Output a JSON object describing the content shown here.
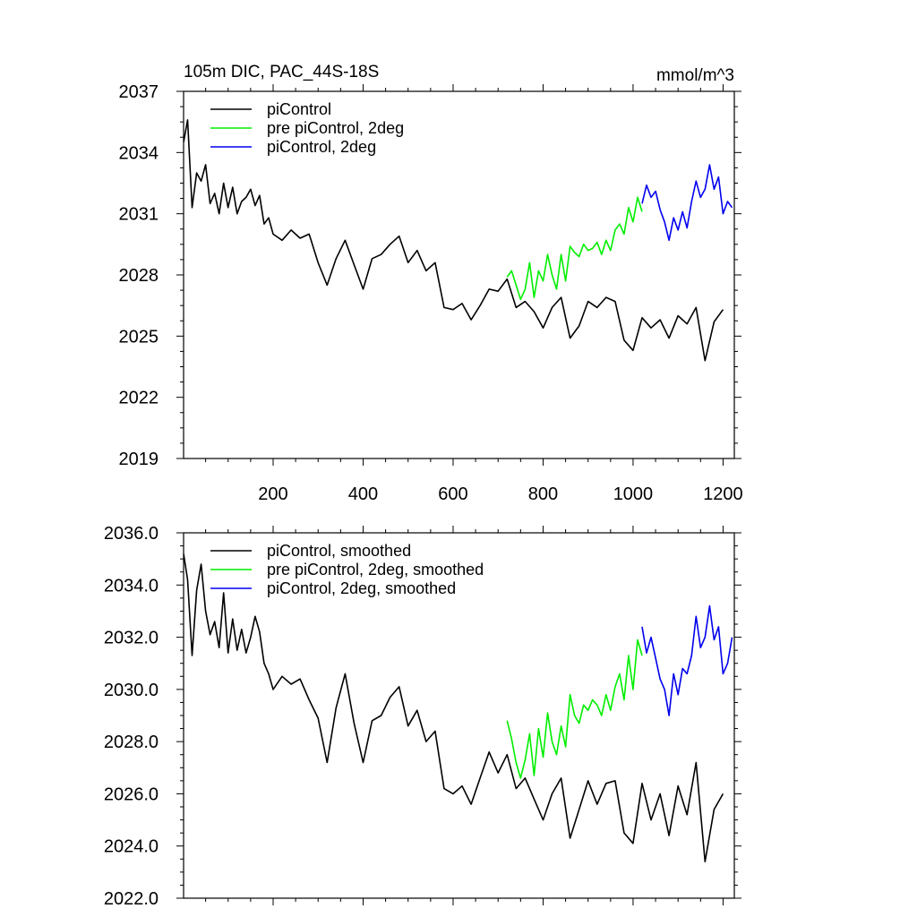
{
  "chart_data": [
    {
      "type": "line",
      "title": "105m DIC, PAC_44S-18S",
      "units": "mmol/m^3",
      "xlabel": "",
      "ylabel": "",
      "xlim": [
        1,
        1225
      ],
      "ylim": [
        2019,
        2037
      ],
      "xticks": [
        200,
        400,
        600,
        800,
        1000,
        1200
      ],
      "xtick_labels": [
        "200",
        "400",
        "600",
        "800",
        "1000",
        "1200"
      ],
      "yticks": [
        2019,
        2022,
        2025,
        2028,
        2031,
        2034,
        2037
      ],
      "ytick_labels": [
        "2019",
        "2022",
        "2025",
        "2028",
        "2031",
        "2034",
        "2037"
      ],
      "legend_position": "top-left",
      "series": [
        {
          "name": "piControl",
          "color": "#000000",
          "x": [
            1,
            10,
            20,
            30,
            40,
            50,
            60,
            70,
            80,
            90,
            100,
            110,
            120,
            130,
            140,
            150,
            160,
            170,
            180,
            190,
            200,
            220,
            240,
            260,
            280,
            300,
            320,
            340,
            360,
            380,
            400,
            420,
            440,
            460,
            480,
            500,
            520,
            540,
            560,
            580,
            600,
            620,
            640,
            660,
            680,
            700,
            720,
            740,
            760,
            780,
            800,
            820,
            840,
            860,
            880,
            900,
            920,
            940,
            960,
            980,
            1000,
            1020,
            1040,
            1060,
            1080,
            1100,
            1120,
            1140,
            1160,
            1180,
            1200
          ],
          "values": [
            2034.5,
            2035.6,
            2031.3,
            2033.0,
            2032.6,
            2033.4,
            2031.5,
            2032.0,
            2031.0,
            2032.5,
            2031.3,
            2032.3,
            2031.0,
            2031.6,
            2031.8,
            2032.2,
            2031.4,
            2031.9,
            2030.5,
            2030.8,
            2030.0,
            2029.7,
            2030.2,
            2029.8,
            2030.0,
            2028.6,
            2027.5,
            2028.8,
            2029.7,
            2028.5,
            2027.3,
            2028.8,
            2029.0,
            2029.5,
            2029.9,
            2028.6,
            2029.2,
            2028.2,
            2028.6,
            2026.4,
            2026.3,
            2026.6,
            2025.8,
            2026.5,
            2027.3,
            2027.2,
            2027.8,
            2026.4,
            2026.7,
            2026.2,
            2025.4,
            2026.4,
            2026.9,
            2024.9,
            2025.5,
            2026.7,
            2026.4,
            2026.9,
            2026.7,
            2024.8,
            2024.3,
            2025.9,
            2025.4,
            2025.8,
            2024.9,
            2026.0,
            2025.6,
            2026.4,
            2023.8,
            2025.7,
            2026.3
          ]
        },
        {
          "name": "pre piControl, 2deg",
          "color": "#00ee00",
          "x": [
            720,
            730,
            740,
            750,
            760,
            770,
            780,
            790,
            800,
            810,
            820,
            830,
            840,
            850,
            860,
            870,
            880,
            890,
            900,
            910,
            920,
            930,
            940,
            950,
            960,
            970,
            980,
            990,
            1000,
            1010,
            1020
          ],
          "values": [
            2027.9,
            2028.2,
            2027.5,
            2026.8,
            2027.3,
            2028.6,
            2026.9,
            2028.2,
            2027.7,
            2029.0,
            2028.0,
            2027.3,
            2029.0,
            2027.7,
            2029.4,
            2029.1,
            2028.9,
            2029.5,
            2029.2,
            2029.3,
            2029.6,
            2029.0,
            2029.7,
            2029.2,
            2030.2,
            2030.5,
            2030.0,
            2031.3,
            2030.6,
            2031.8,
            2031.1
          ]
        },
        {
          "name": "piControl, 2deg",
          "color": "#0000ee",
          "x": [
            1020,
            1030,
            1040,
            1050,
            1060,
            1070,
            1080,
            1090,
            1100,
            1110,
            1120,
            1130,
            1140,
            1150,
            1160,
            1170,
            1180,
            1190,
            1200,
            1210,
            1220
          ],
          "values": [
            2031.5,
            2032.4,
            2031.8,
            2032.1,
            2031.2,
            2030.6,
            2029.7,
            2030.8,
            2030.2,
            2031.1,
            2030.3,
            2031.6,
            2032.6,
            2031.8,
            2032.2,
            2033.4,
            2032.2,
            2032.8,
            2031.0,
            2031.6,
            2031.3
          ]
        }
      ]
    },
    {
      "type": "line",
      "title": "",
      "xlabel": "",
      "ylabel": "",
      "xlim": [
        1,
        1225
      ],
      "ylim": [
        2022.0,
        2036.0
      ],
      "xticks": [
        200,
        400,
        600,
        800,
        1000,
        1200
      ],
      "xtick_labels": [],
      "yticks": [
        2022.0,
        2024.0,
        2026.0,
        2028.0,
        2030.0,
        2032.0,
        2034.0,
        2036.0
      ],
      "ytick_labels": [
        "2022.0",
        "2024.0",
        "2026.0",
        "2028.0",
        "2030.0",
        "2032.0",
        "2034.0",
        "2036.0"
      ],
      "legend_position": "top-left",
      "series": [
        {
          "name": "piControl, smoothed",
          "color": "#000000",
          "x": [
            1,
            10,
            20,
            30,
            40,
            50,
            60,
            70,
            80,
            90,
            100,
            110,
            120,
            130,
            140,
            150,
            160,
            170,
            180,
            190,
            200,
            220,
            240,
            260,
            280,
            300,
            320,
            340,
            360,
            380,
            400,
            420,
            440,
            460,
            480,
            500,
            520,
            540,
            560,
            580,
            600,
            620,
            640,
            660,
            680,
            700,
            720,
            740,
            760,
            780,
            800,
            820,
            840,
            860,
            880,
            900,
            920,
            940,
            960,
            980,
            1000,
            1020,
            1040,
            1060,
            1080,
            1100,
            1120,
            1140,
            1160,
            1180,
            1200
          ],
          "values": [
            2035.2,
            2034.2,
            2031.3,
            2033.8,
            2034.8,
            2033.0,
            2032.1,
            2032.6,
            2031.6,
            2033.7,
            2031.4,
            2032.7,
            2031.5,
            2032.3,
            2031.4,
            2032.0,
            2032.8,
            2032.2,
            2031.0,
            2030.6,
            2030.0,
            2030.5,
            2030.2,
            2030.4,
            2029.6,
            2028.9,
            2027.2,
            2029.3,
            2030.6,
            2028.7,
            2027.2,
            2028.8,
            2029.0,
            2029.7,
            2030.1,
            2028.6,
            2029.2,
            2028.0,
            2028.4,
            2026.2,
            2026.0,
            2026.3,
            2025.6,
            2026.6,
            2027.6,
            2026.8,
            2027.5,
            2026.2,
            2026.6,
            2025.8,
            2025.0,
            2026.0,
            2026.6,
            2024.3,
            2025.4,
            2026.5,
            2025.6,
            2026.4,
            2026.5,
            2024.5,
            2024.1,
            2026.4,
            2025.0,
            2026.0,
            2024.4,
            2026.3,
            2025.2,
            2027.2,
            2023.4,
            2025.4,
            2026.0
          ]
        },
        {
          "name": "pre piControl, 2deg, smoothed",
          "color": "#00ee00",
          "x": [
            720,
            730,
            740,
            750,
            760,
            770,
            780,
            790,
            800,
            810,
            820,
            830,
            840,
            850,
            860,
            870,
            880,
            890,
            900,
            910,
            920,
            930,
            940,
            950,
            960,
            970,
            980,
            990,
            1000,
            1010,
            1020
          ],
          "values": [
            2028.8,
            2028.1,
            2027.2,
            2026.6,
            2027.3,
            2028.3,
            2026.7,
            2028.5,
            2027.4,
            2029.1,
            2028.0,
            2027.5,
            2028.6,
            2027.8,
            2029.8,
            2029.0,
            2028.7,
            2029.4,
            2029.2,
            2029.6,
            2029.4,
            2029.0,
            2029.8,
            2029.2,
            2030.1,
            2030.6,
            2029.6,
            2031.3,
            2030.0,
            2031.9,
            2031.3
          ]
        },
        {
          "name": "piControl, 2deg, smoothed",
          "color": "#0000ee",
          "x": [
            1020,
            1030,
            1040,
            1050,
            1060,
            1070,
            1080,
            1090,
            1100,
            1110,
            1120,
            1130,
            1140,
            1150,
            1160,
            1170,
            1180,
            1190,
            1200,
            1210,
            1220
          ],
          "values": [
            2032.4,
            2031.4,
            2032.0,
            2031.2,
            2030.4,
            2030.0,
            2029.0,
            2030.6,
            2029.8,
            2030.8,
            2030.6,
            2031.3,
            2032.8,
            2031.6,
            2032.0,
            2033.2,
            2031.9,
            2032.4,
            2030.6,
            2031.0,
            2032.0
          ]
        }
      ]
    }
  ]
}
